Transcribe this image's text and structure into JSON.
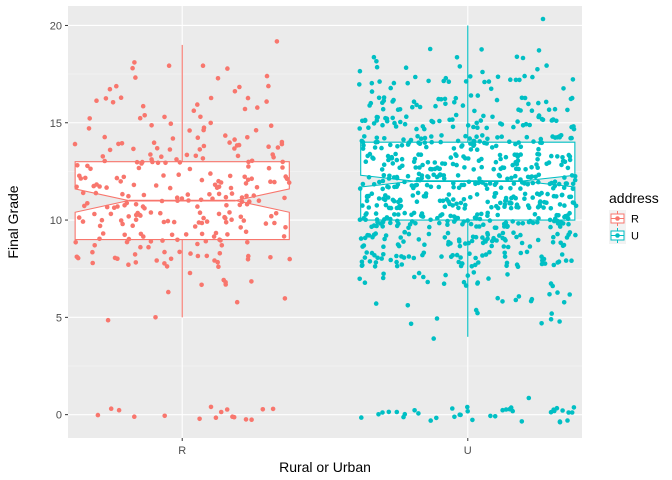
{
  "chart_data": {
    "type": "boxplot_jitter",
    "title": "",
    "xlabel": "Rural or Urban",
    "ylabel": "Final Grade",
    "categories": [
      "R",
      "U"
    ],
    "y_ticks": [
      0,
      5,
      10,
      15,
      20
    ],
    "y_tick_labels": [
      "0",
      "5",
      "10",
      "15",
      "20"
    ],
    "ylim": [
      -1.2,
      21
    ],
    "grid": true,
    "notched": true,
    "legend": {
      "title": "address",
      "position": "right",
      "entries": [
        "R",
        "U"
      ]
    },
    "colors": {
      "R": "#F8766D",
      "U": "#00BFC4",
      "panel": "#EBEBEB",
      "grid_major": "#FFFFFF"
    },
    "boxes": [
      {
        "category": "R",
        "q1": 9,
        "median": 11,
        "q3": 13,
        "whisker_low": 5,
        "whisker_high": 19,
        "notch_low": 10.4,
        "notch_high": 11.6
      },
      {
        "category": "U",
        "q1": 10,
        "median": 12,
        "q3": 14,
        "whisker_low": 4,
        "whisker_high": 20,
        "notch_low": 11.7,
        "notch_high": 12.3
      }
    ],
    "points": {
      "R": {
        "jitter_width": 0.38,
        "count": 288,
        "grade_counts": {
          "0": 16,
          "5": 2,
          "6": 3,
          "7": 6,
          "8": 26,
          "9": 28,
          "10": 40,
          "11": 38,
          "12": 35,
          "13": 30,
          "14": 24,
          "15": 14,
          "16": 12,
          "17": 8,
          "18": 5,
          "19": 1
        },
        "grade_range": [
          0,
          19
        ]
      },
      "U": {
        "jitter_width": 0.38,
        "count": 795,
        "grade_counts": {
          "0": 37,
          "1": 1,
          "4": 1,
          "5": 8,
          "6": 12,
          "7": 20,
          "8": 60,
          "9": 70,
          "10": 100,
          "11": 100,
          "12": 95,
          "13": 85,
          "14": 70,
          "15": 55,
          "16": 40,
          "17": 25,
          "18": 12,
          "19": 3,
          "20": 1
        },
        "grade_range": [
          0,
          20
        ]
      }
    }
  }
}
